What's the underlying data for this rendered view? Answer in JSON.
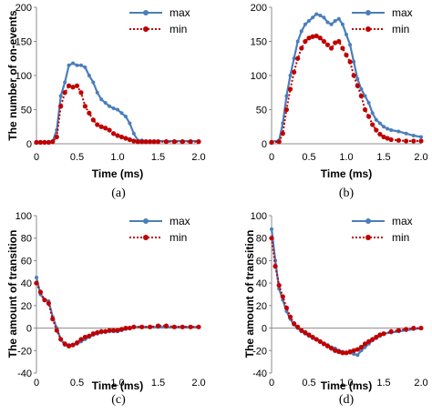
{
  "colors": {
    "max": "#4a7ebb",
    "min": "#c00000",
    "axis": "#8c8c8c"
  },
  "chart_data": [
    {
      "type": "line",
      "panel": "a",
      "caption": "(a)",
      "xlabel": "Time (ms)",
      "ylabel": "The number of on-events",
      "xlim": [
        0,
        2.0
      ],
      "ylim": [
        0,
        200
      ],
      "xticks": [
        "0",
        "0.5",
        "1.0",
        "1.5",
        "2.0"
      ],
      "yticks": [
        "0",
        "50",
        "100",
        "150",
        "200"
      ],
      "grid": false,
      "legend": "top-right",
      "series": [
        {
          "name": "max",
          "x": [
            0,
            0.05,
            0.1,
            0.15,
            0.2,
            0.25,
            0.3,
            0.35,
            0.4,
            0.45,
            0.5,
            0.55,
            0.6,
            0.65,
            0.7,
            0.75,
            0.8,
            0.85,
            0.9,
            0.95,
            1.0,
            1.05,
            1.1,
            1.15,
            1.2,
            1.25,
            1.3,
            1.35,
            1.4,
            1.45,
            1.5,
            1.6,
            1.7,
            1.8,
            1.9,
            2.0
          ],
          "y": [
            3,
            3,
            3,
            3,
            4,
            20,
            70,
            90,
            115,
            118,
            115,
            115,
            112,
            100,
            90,
            75,
            65,
            60,
            55,
            52,
            50,
            45,
            40,
            30,
            15,
            5,
            5,
            4,
            4,
            4,
            4,
            4,
            4,
            4,
            4,
            4
          ]
        },
        {
          "name": "min",
          "x": [
            0,
            0.05,
            0.1,
            0.15,
            0.2,
            0.25,
            0.3,
            0.35,
            0.4,
            0.45,
            0.5,
            0.55,
            0.6,
            0.65,
            0.7,
            0.75,
            0.8,
            0.85,
            0.9,
            0.95,
            1.0,
            1.05,
            1.1,
            1.15,
            1.2,
            1.25,
            1.3,
            1.35,
            1.4,
            1.45,
            1.5,
            1.6,
            1.7,
            1.8,
            1.9,
            2.0
          ],
          "y": [
            2,
            2,
            2,
            2,
            3,
            10,
            55,
            75,
            85,
            83,
            85,
            75,
            55,
            45,
            35,
            28,
            25,
            23,
            20,
            15,
            12,
            10,
            8,
            6,
            4,
            3,
            3,
            3,
            3,
            3,
            3,
            3,
            3,
            3,
            3,
            3
          ]
        }
      ]
    },
    {
      "type": "line",
      "panel": "b",
      "caption": "(b)",
      "xlabel": "Time (ms)",
      "ylabel": "",
      "xlim": [
        0,
        2.0
      ],
      "ylim": [
        0,
        200
      ],
      "xticks": [
        "0",
        "0.5",
        "1.0",
        "1.5",
        "2.0"
      ],
      "yticks": [
        "0",
        "50",
        "100",
        "150",
        "200"
      ],
      "grid": false,
      "legend": "top-right",
      "series": [
        {
          "name": "max",
          "x": [
            0,
            0.1,
            0.15,
            0.2,
            0.25,
            0.3,
            0.35,
            0.4,
            0.45,
            0.5,
            0.55,
            0.6,
            0.65,
            0.7,
            0.75,
            0.8,
            0.85,
            0.9,
            0.95,
            1.0,
            1.05,
            1.1,
            1.15,
            1.2,
            1.25,
            1.3,
            1.35,
            1.4,
            1.45,
            1.5,
            1.55,
            1.6,
            1.7,
            1.8,
            1.9,
            2.0
          ],
          "y": [
            3,
            5,
            30,
            70,
            100,
            125,
            150,
            165,
            175,
            180,
            185,
            190,
            188,
            185,
            178,
            175,
            180,
            183,
            175,
            160,
            145,
            120,
            95,
            80,
            70,
            60,
            45,
            35,
            30,
            25,
            22,
            20,
            18,
            15,
            12,
            10
          ]
        },
        {
          "name": "min",
          "x": [
            0,
            0.1,
            0.15,
            0.2,
            0.25,
            0.3,
            0.35,
            0.4,
            0.45,
            0.5,
            0.55,
            0.6,
            0.65,
            0.7,
            0.75,
            0.8,
            0.85,
            0.9,
            0.95,
            1.0,
            1.05,
            1.1,
            1.15,
            1.2,
            1.25,
            1.3,
            1.35,
            1.4,
            1.45,
            1.5,
            1.55,
            1.6,
            1.7,
            1.8,
            1.9,
            2.0
          ],
          "y": [
            2,
            3,
            15,
            50,
            80,
            105,
            125,
            140,
            150,
            155,
            157,
            158,
            155,
            150,
            145,
            140,
            148,
            150,
            140,
            130,
            120,
            100,
            85,
            70,
            50,
            40,
            28,
            20,
            14,
            10,
            8,
            6,
            5,
            4,
            4,
            4
          ]
        }
      ]
    },
    {
      "type": "line",
      "panel": "c",
      "caption": "(c)",
      "xlabel": "Time (ms)",
      "ylabel": "The amount of transition",
      "xlim": [
        0,
        2.0
      ],
      "ylim": [
        -40,
        100
      ],
      "xticks": [
        "0",
        "0.5",
        "1.0",
        "1.5",
        "2.0"
      ],
      "yticks": [
        "-40",
        "-20",
        "0",
        "20",
        "40",
        "60",
        "80",
        "100"
      ],
      "grid": false,
      "legend": "top-right",
      "series": [
        {
          "name": "max",
          "x": [
            0,
            0.05,
            0.1,
            0.15,
            0.2,
            0.25,
            0.3,
            0.35,
            0.4,
            0.45,
            0.5,
            0.55,
            0.6,
            0.65,
            0.7,
            0.75,
            0.8,
            0.85,
            0.9,
            0.95,
            1.0,
            1.05,
            1.1,
            1.15,
            1.2,
            1.3,
            1.4,
            1.5,
            1.6,
            1.7,
            1.8,
            1.9,
            2.0
          ],
          "y": [
            45,
            30,
            25,
            24,
            10,
            0,
            -10,
            -15,
            -15,
            -15,
            -14,
            -12,
            -10,
            -8,
            -6,
            -5,
            -4,
            -3,
            -3,
            -3,
            -3,
            -2,
            -1,
            0,
            1,
            1,
            1,
            1,
            1,
            1,
            1,
            1,
            1
          ]
        },
        {
          "name": "min",
          "x": [
            0,
            0.05,
            0.1,
            0.15,
            0.2,
            0.25,
            0.3,
            0.35,
            0.4,
            0.45,
            0.5,
            0.55,
            0.6,
            0.65,
            0.7,
            0.75,
            0.8,
            0.85,
            0.9,
            0.95,
            1.0,
            1.05,
            1.1,
            1.15,
            1.2,
            1.3,
            1.4,
            1.5,
            1.6,
            1.7,
            1.8,
            1.9,
            2.0
          ],
          "y": [
            40,
            32,
            25,
            22,
            8,
            -2,
            -10,
            -14,
            -16,
            -15,
            -13,
            -10,
            -8,
            -7,
            -5,
            -4,
            -3,
            -3,
            -2,
            -2,
            -2,
            -1,
            0,
            0,
            1,
            1,
            1,
            2,
            2,
            1,
            1,
            1,
            1
          ]
        }
      ]
    },
    {
      "type": "line",
      "panel": "d",
      "caption": "(d)",
      "xlabel": "Time (ms)",
      "ylabel": "The amount of transition",
      "xlim": [
        0,
        2.0
      ],
      "ylim": [
        -40,
        100
      ],
      "xticks": [
        "0",
        "0.5",
        "1.0",
        "1.5",
        "2.0"
      ],
      "yticks": [
        "-40",
        "-20",
        "0",
        "20",
        "40",
        "60",
        "80",
        "100"
      ],
      "grid": false,
      "legend": "top-right",
      "series": [
        {
          "name": "max",
          "x": [
            0,
            0.05,
            0.1,
            0.15,
            0.2,
            0.25,
            0.3,
            0.35,
            0.4,
            0.45,
            0.5,
            0.55,
            0.6,
            0.65,
            0.7,
            0.75,
            0.8,
            0.85,
            0.9,
            0.95,
            1.0,
            1.05,
            1.1,
            1.15,
            1.2,
            1.25,
            1.3,
            1.35,
            1.4,
            1.45,
            1.5,
            1.6,
            1.7,
            1.8,
            1.9,
            2.0
          ],
          "y": [
            88,
            60,
            35,
            25,
            15,
            8,
            3,
            0,
            -3,
            -5,
            -7,
            -9,
            -10,
            -12,
            -14,
            -15,
            -17,
            -18,
            -20,
            -21,
            -22,
            -22,
            -23,
            -24,
            -20,
            -17,
            -14,
            -11,
            -9,
            -7,
            -5,
            -4,
            -3,
            -2,
            -1,
            0
          ]
        },
        {
          "name": "min",
          "x": [
            0,
            0.05,
            0.1,
            0.15,
            0.2,
            0.25,
            0.3,
            0.35,
            0.4,
            0.45,
            0.5,
            0.55,
            0.6,
            0.65,
            0.7,
            0.75,
            0.8,
            0.85,
            0.9,
            0.95,
            1.0,
            1.05,
            1.1,
            1.15,
            1.2,
            1.25,
            1.3,
            1.35,
            1.4,
            1.45,
            1.5,
            1.6,
            1.7,
            1.8,
            1.9,
            2.0
          ],
          "y": [
            80,
            55,
            38,
            28,
            18,
            10,
            4,
            1,
            -2,
            -4,
            -6,
            -8,
            -10,
            -12,
            -14,
            -16,
            -18,
            -20,
            -21,
            -22,
            -22,
            -21,
            -20,
            -19,
            -17,
            -14,
            -12,
            -10,
            -8,
            -6,
            -5,
            -3,
            -2,
            -1,
            0,
            0
          ]
        }
      ]
    }
  ]
}
